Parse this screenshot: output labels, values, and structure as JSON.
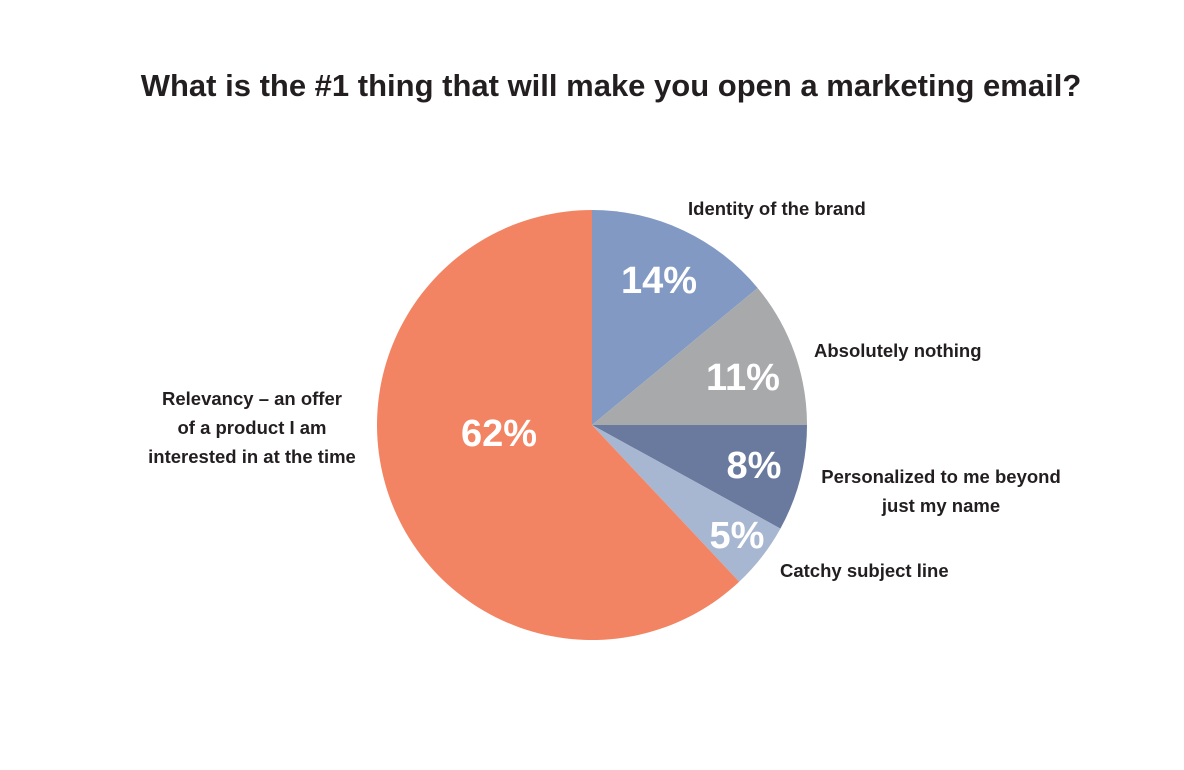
{
  "chart_data": {
    "type": "pie",
    "title": "What is the #1 thing that will make you open a marketing email?",
    "slices": [
      {
        "label": [
          "Identity of the brand"
        ],
        "value": 14,
        "value_label": "14%",
        "color": "#8199c3"
      },
      {
        "label": [
          "Absolutely nothing"
        ],
        "value": 11,
        "value_label": "11%",
        "color": "#a8a9ab"
      },
      {
        "label": [
          "Personalized to me beyond",
          "just my name"
        ],
        "value": 8,
        "value_label": "8%",
        "color": "#6a7a9e"
      },
      {
        "label": [
          "Catchy subject line"
        ],
        "value": 5,
        "value_label": "5%",
        "color": "#a7b6d1"
      },
      {
        "label": [
          "Relevancy – an offer",
          "of a product I am",
          "interested in at the time"
        ],
        "value": 62,
        "value_label": "62%",
        "color": "#f38463"
      }
    ]
  }
}
